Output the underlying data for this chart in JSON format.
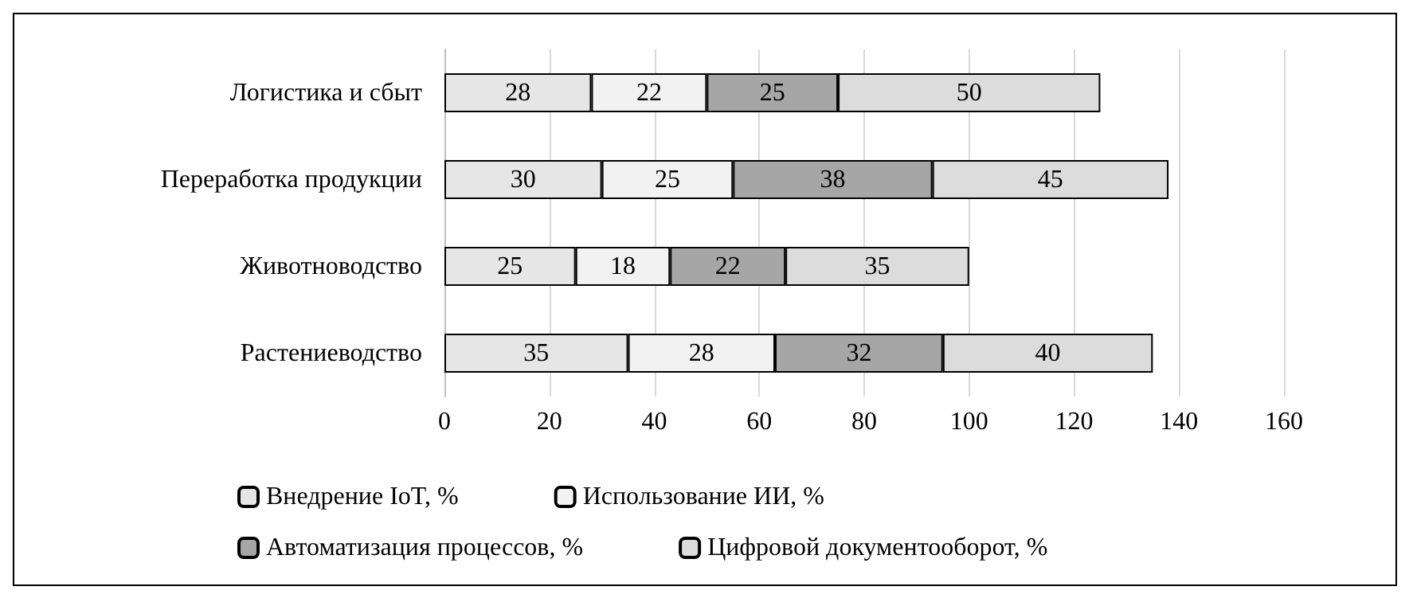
{
  "chart_data": {
    "type": "bar",
    "orientation": "horizontal",
    "stacked": true,
    "data_labels": true,
    "categories": [
      "Логистика и сбыт",
      "Переработка продукции",
      "Животноводство",
      "Растениеводство"
    ],
    "series": [
      {
        "name": "Внедрение IoT, %",
        "color": "#e6e6e6",
        "values": [
          28,
          30,
          25,
          35
        ]
      },
      {
        "name": "Использование ИИ, %",
        "color": "#f2f2f2",
        "values": [
          22,
          25,
          18,
          28
        ]
      },
      {
        "name": "Автоматизация процессов, %",
        "color": "#a6a6a6",
        "values": [
          25,
          38,
          22,
          32
        ]
      },
      {
        "name": "Цифровой документооборот, %",
        "color": "#dcdcdc",
        "values": [
          50,
          45,
          35,
          40
        ]
      }
    ],
    "xlim": [
      0,
      160
    ],
    "xticks": [
      0,
      20,
      40,
      60,
      80,
      100,
      120,
      140,
      160
    ],
    "grid": "x",
    "legend": "bottom"
  }
}
